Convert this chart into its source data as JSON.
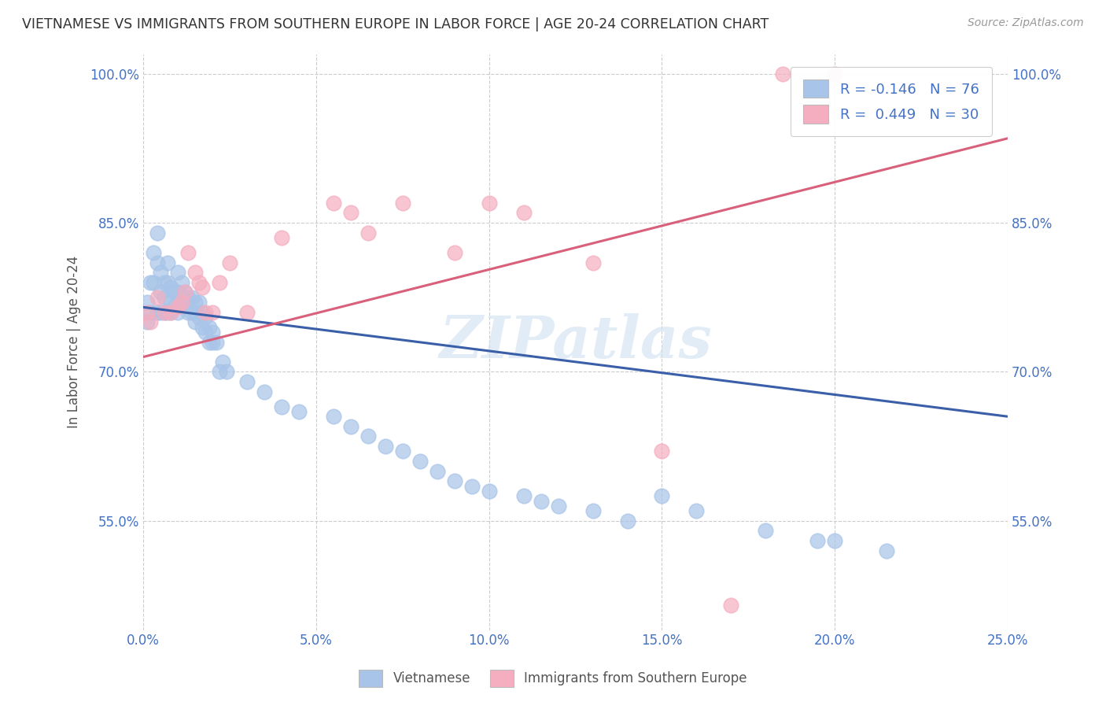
{
  "title": "VIETNAMESE VS IMMIGRANTS FROM SOUTHERN EUROPE IN LABOR FORCE | AGE 20-24 CORRELATION CHART",
  "source": "Source: ZipAtlas.com",
  "ylabel": "In Labor Force | Age 20-24",
  "xlim": [
    0.0,
    0.25
  ],
  "ylim": [
    0.44,
    1.02
  ],
  "yticks": [
    0.55,
    0.7,
    0.85,
    1.0
  ],
  "ytick_labels": [
    "55.0%",
    "70.0%",
    "85.0%",
    "100.0%"
  ],
  "xtick_labels": [
    "0.0%",
    "5.0%",
    "10.0%",
    "15.0%",
    "20.0%",
    "25.0%"
  ],
  "watermark": "ZIPatlas",
  "blue_R": "-0.146",
  "blue_N": "76",
  "pink_R": "0.449",
  "pink_N": "30",
  "blue_color": "#a8c4e8",
  "pink_color": "#f4aec0",
  "blue_line_color": "#3a5fa8",
  "pink_line_color": "#d9607a",
  "blue_line_x0": 0.0,
  "blue_line_y0": 0.765,
  "blue_line_x1": 0.25,
  "blue_line_y1": 0.655,
  "pink_line_x0": 0.0,
  "pink_line_y0": 0.715,
  "pink_line_x1": 0.25,
  "pink_line_y1": 0.935,
  "blue_x": [
    0.001,
    0.001,
    0.002,
    0.002,
    0.003,
    0.003,
    0.004,
    0.004,
    0.004,
    0.005,
    0.005,
    0.005,
    0.006,
    0.006,
    0.006,
    0.007,
    0.007,
    0.007,
    0.008,
    0.008,
    0.008,
    0.009,
    0.009,
    0.01,
    0.01,
    0.01,
    0.011,
    0.011,
    0.012,
    0.012,
    0.013,
    0.013,
    0.014,
    0.014,
    0.015,
    0.015,
    0.015,
    0.016,
    0.016,
    0.017,
    0.017,
    0.018,
    0.018,
    0.019,
    0.019,
    0.02,
    0.02,
    0.021,
    0.022,
    0.023,
    0.024,
    0.03,
    0.035,
    0.04,
    0.045,
    0.055,
    0.06,
    0.065,
    0.07,
    0.075,
    0.08,
    0.085,
    0.09,
    0.095,
    0.1,
    0.11,
    0.115,
    0.12,
    0.13,
    0.14,
    0.15,
    0.16,
    0.18,
    0.195,
    0.2,
    0.215
  ],
  "blue_y": [
    0.77,
    0.75,
    0.79,
    0.76,
    0.82,
    0.79,
    0.84,
    0.81,
    0.76,
    0.8,
    0.78,
    0.76,
    0.79,
    0.775,
    0.76,
    0.81,
    0.79,
    0.76,
    0.785,
    0.77,
    0.76,
    0.78,
    0.765,
    0.8,
    0.78,
    0.76,
    0.79,
    0.775,
    0.78,
    0.77,
    0.775,
    0.76,
    0.775,
    0.76,
    0.77,
    0.76,
    0.75,
    0.77,
    0.755,
    0.76,
    0.745,
    0.755,
    0.74,
    0.745,
    0.73,
    0.74,
    0.73,
    0.73,
    0.7,
    0.71,
    0.7,
    0.69,
    0.68,
    0.665,
    0.66,
    0.655,
    0.645,
    0.635,
    0.625,
    0.62,
    0.61,
    0.6,
    0.59,
    0.585,
    0.58,
    0.575,
    0.57,
    0.565,
    0.56,
    0.55,
    0.575,
    0.56,
    0.54,
    0.53,
    0.53,
    0.52
  ],
  "pink_x": [
    0.001,
    0.002,
    0.004,
    0.006,
    0.008,
    0.01,
    0.011,
    0.012,
    0.013,
    0.015,
    0.016,
    0.017,
    0.018,
    0.02,
    0.022,
    0.025,
    0.03,
    0.04,
    0.055,
    0.06,
    0.065,
    0.075,
    0.09,
    0.1,
    0.11,
    0.13,
    0.15,
    0.17,
    0.185,
    0.2
  ],
  "pink_y": [
    0.76,
    0.75,
    0.775,
    0.76,
    0.76,
    0.765,
    0.77,
    0.78,
    0.82,
    0.8,
    0.79,
    0.785,
    0.76,
    0.76,
    0.79,
    0.81,
    0.76,
    0.835,
    0.87,
    0.86,
    0.84,
    0.87,
    0.82,
    0.87,
    0.86,
    0.81,
    0.62,
    0.465,
    1.0,
    1.0
  ]
}
